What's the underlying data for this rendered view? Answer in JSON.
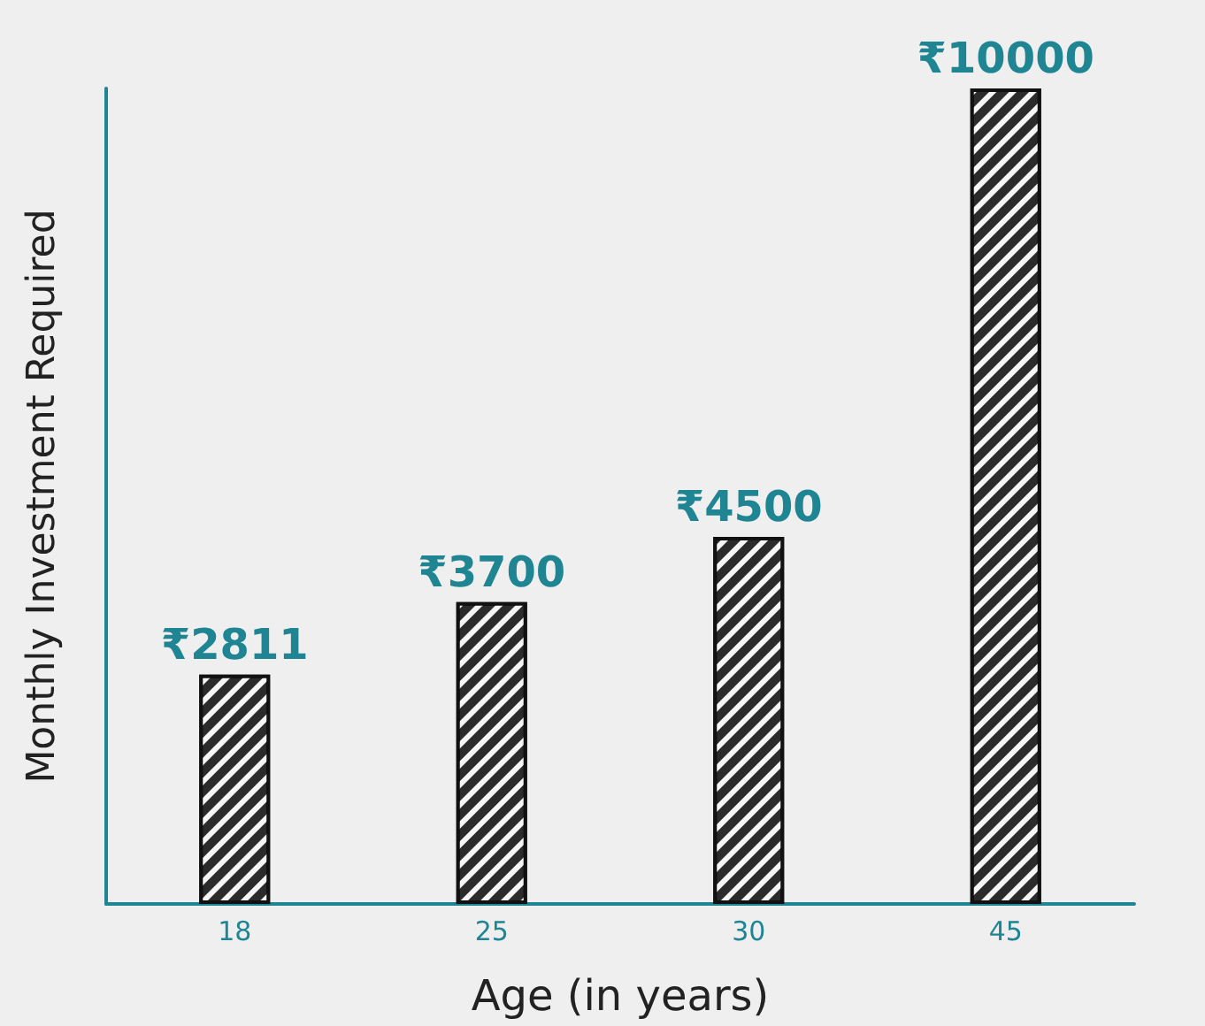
{
  "chart_data": {
    "type": "bar",
    "xlabel": "Age (in years)",
    "ylabel": "Monthly Investment Required",
    "categories": [
      "18",
      "25",
      "30",
      "45"
    ],
    "values": [
      2811,
      3700,
      4500,
      10000
    ],
    "value_labels": [
      "₹2811",
      "₹3700",
      "₹4500",
      "₹10000"
    ],
    "color": "#2b2b2b",
    "tick_labels": "x",
    "grid": false
  }
}
